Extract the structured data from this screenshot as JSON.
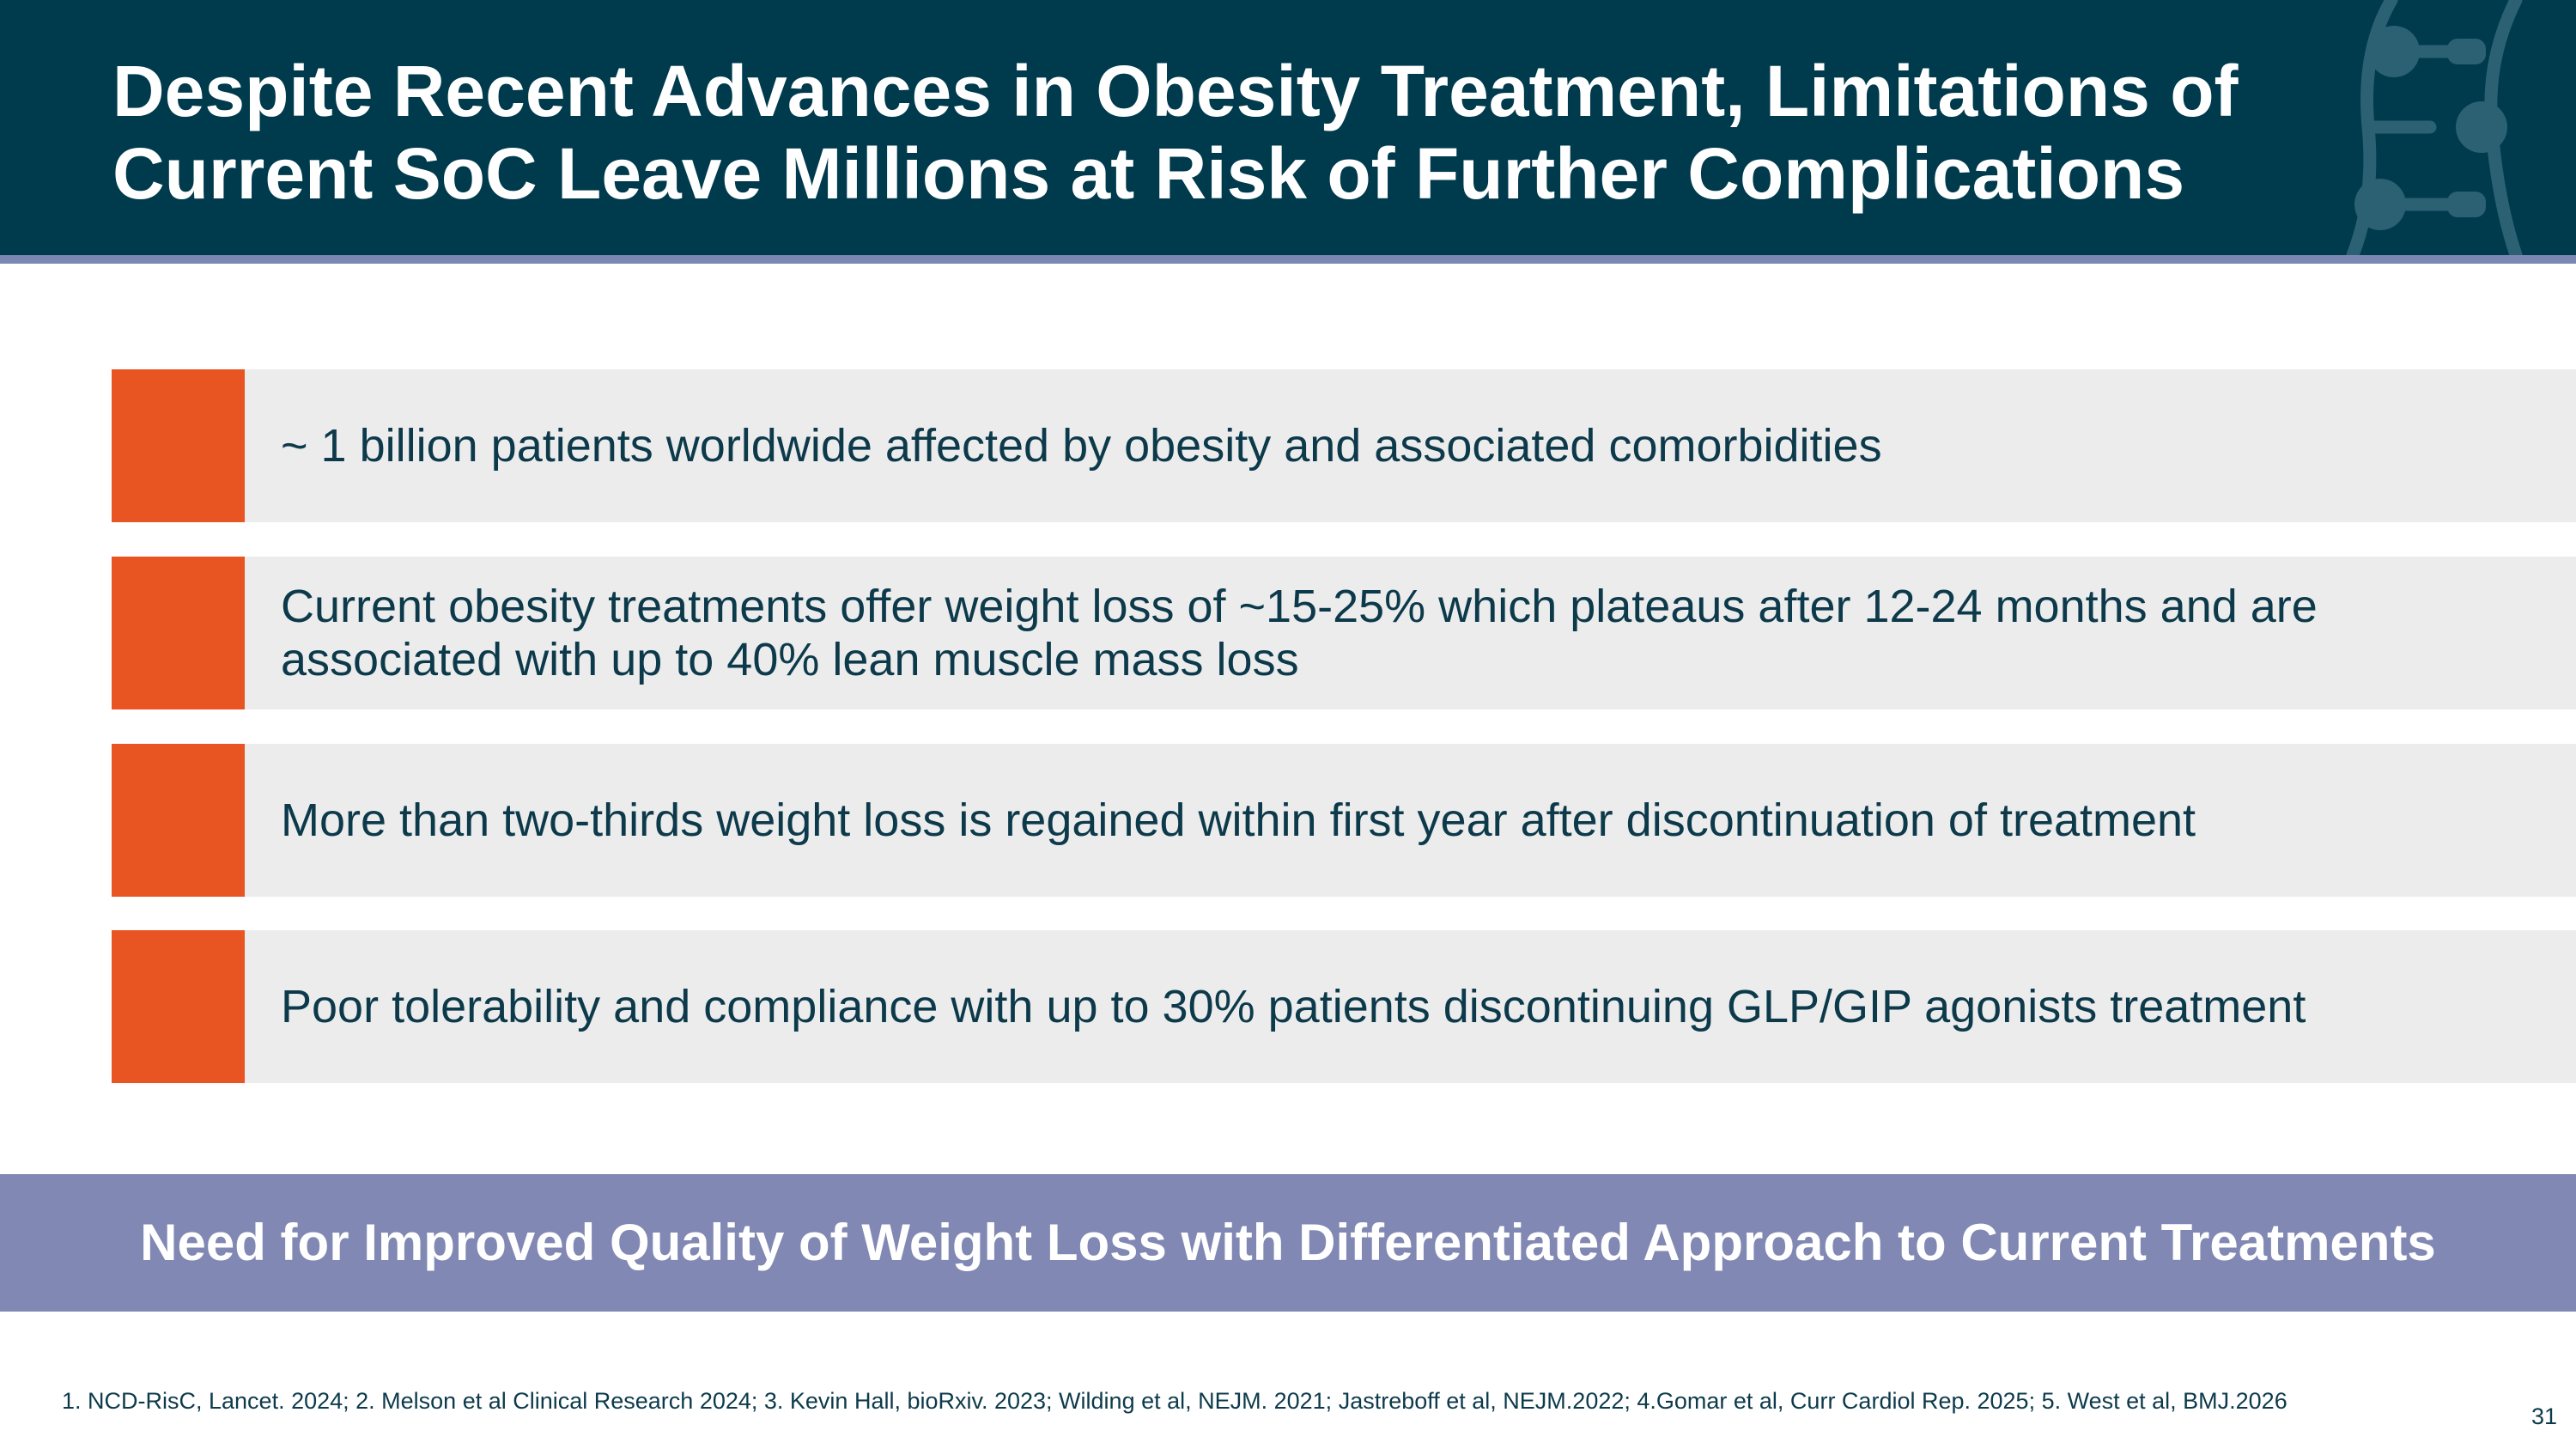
{
  "header": {
    "title": "Despite Recent Advances in Obesity Treatment, Limitations of\nCurrent SoC Leave Millions at Risk of Further Complications",
    "logo_icon": "dna-ladder-logo-icon"
  },
  "bullets": [
    {
      "text": "~ 1 billion patients worldwide affected by obesity and associated comorbidities"
    },
    {
      "text": "Current obesity treatments offer weight loss of ~15-25% which plateaus after 12-24 months and are associated with up to 40% lean muscle mass loss"
    },
    {
      "text": "More than two-thirds weight loss is regained within first year after discontinuation of treatment"
    },
    {
      "text": "Poor tolerability and compliance with up to 30% patients discontinuing GLP/GIP agonists treatment"
    }
  ],
  "banner": {
    "text": "Need for Improved Quality of Weight Loss with Differentiated Approach to Current Treatments"
  },
  "footnote": "1. NCD-RisC, Lancet. 2024; 2. Melson et al Clinical Research 2024; 3. Kevin Hall, bioRxiv. 2023; Wilding et al, NEJM. 2021; Jastreboff et al, NEJM.2022; 4.Gomar et al, Curr Cardiol Rep. 2025; 5. West et al, BMJ.2026",
  "page_number": "31",
  "colors": {
    "header_bg": "#003a4d",
    "header_rule": "#7b87b3",
    "accent_orange": "#e85522",
    "bullet_bg": "#ececec",
    "banner_bg": "#8088b3",
    "text_dark": "#0d3a4b"
  }
}
